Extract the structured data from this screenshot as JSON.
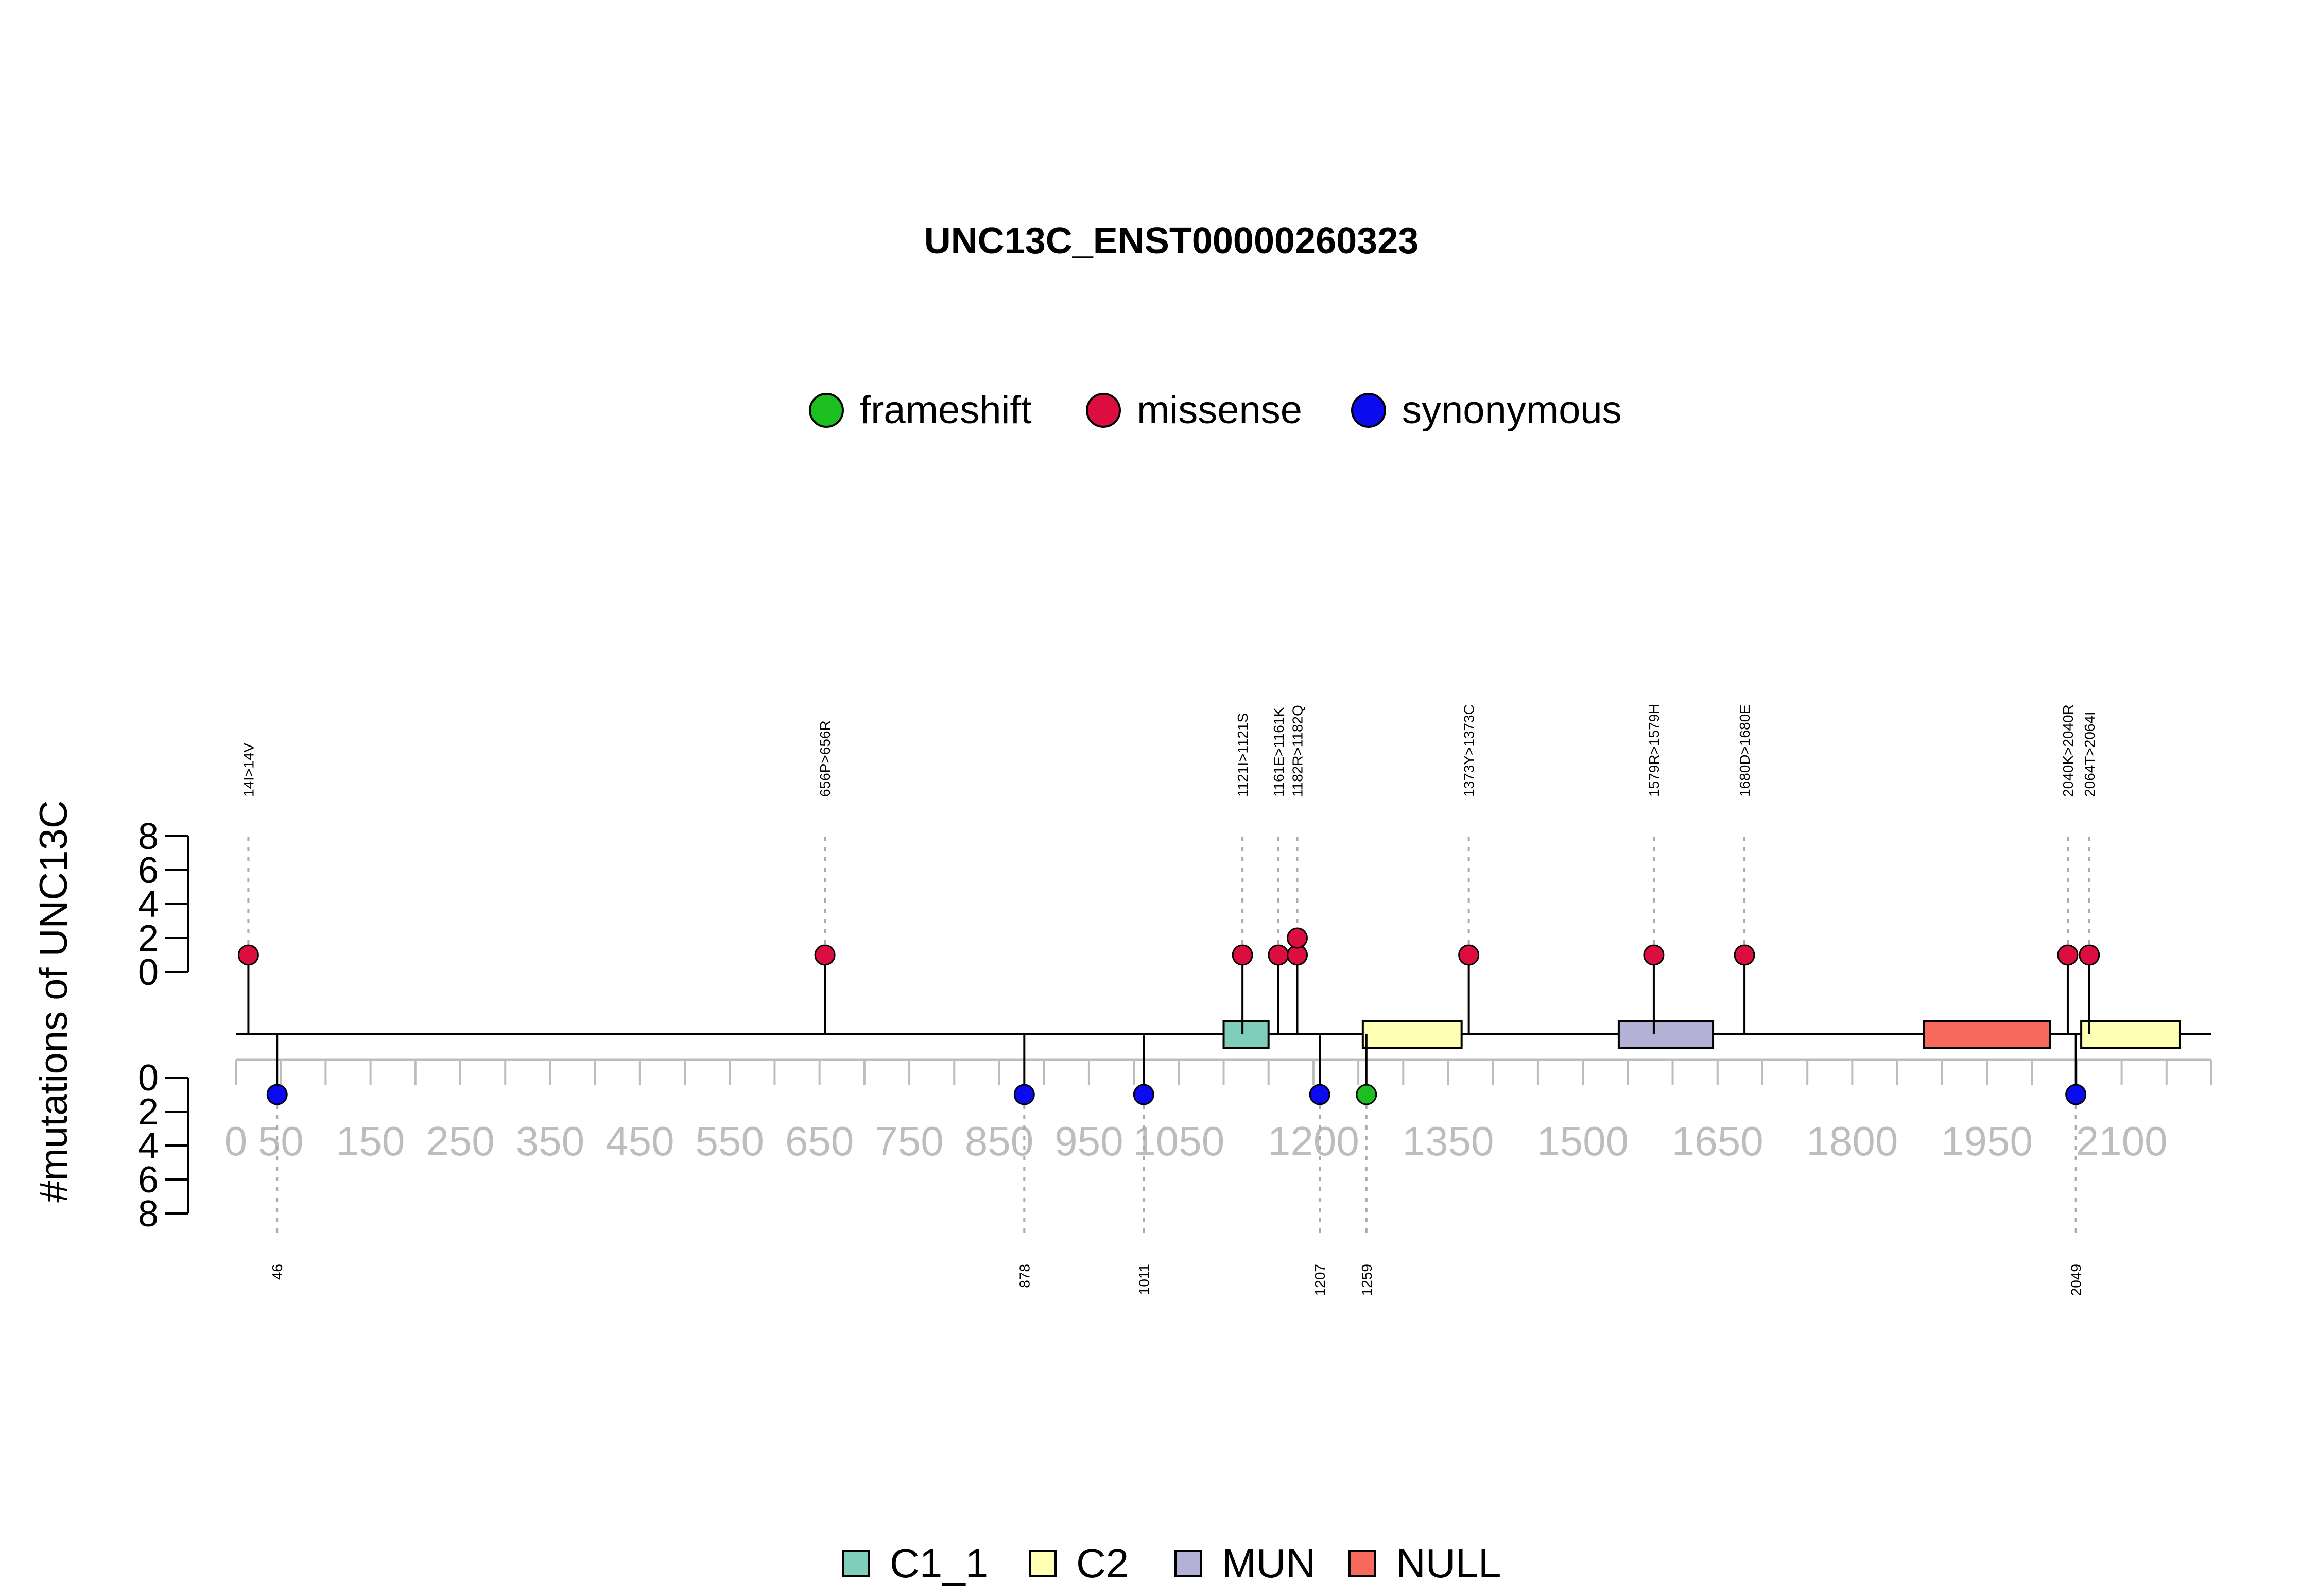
{
  "chart_data": {
    "type": "lollipop",
    "title": "UNC13C_ENST00000260323",
    "ylabel": "#mutations of UNC13C",
    "xlim": [
      0,
      2200
    ],
    "x_ticks": [
      0,
      50,
      150,
      250,
      350,
      450,
      550,
      650,
      750,
      850,
      950,
      1050,
      1200,
      1350,
      1500,
      1650,
      1800,
      1950,
      2100
    ],
    "y_ticks": [
      0,
      2,
      4,
      6,
      8
    ],
    "legend_types": [
      {
        "name": "frameshift",
        "color": "#1cbe20"
      },
      {
        "name": "missense",
        "color": "#dc0e3f"
      },
      {
        "name": "synonymous",
        "color": "#0b0bf0"
      }
    ],
    "legend_domains": [
      {
        "name": "C1_1",
        "color": "#7fcdbb"
      },
      {
        "name": "C2",
        "color": "#ffffb3"
      },
      {
        "name": "MUN",
        "color": "#b3b1d6"
      },
      {
        "name": "NULL",
        "color": "#f7695d"
      }
    ],
    "domains": [
      {
        "name": "C1_1",
        "start": 1100,
        "end": 1150
      },
      {
        "name": "C2",
        "start": 1255,
        "end": 1365
      },
      {
        "name": "MUN",
        "start": 1540,
        "end": 1645
      },
      {
        "name": "NULL",
        "start": 1880,
        "end": 2020
      },
      {
        "name": "C2",
        "start": 2055,
        "end": 2165
      }
    ],
    "top_mutations": [
      {
        "pos": 14,
        "label": "14I>14V",
        "count": 1,
        "type": "missense"
      },
      {
        "pos": 656,
        "label": "656P>656R",
        "count": 1,
        "type": "missense"
      },
      {
        "pos": 1121,
        "label": "1121I>1121S",
        "count": 1,
        "type": "missense"
      },
      {
        "pos": 1161,
        "label": "1161E>1161K",
        "count": 1,
        "type": "missense"
      },
      {
        "pos": 1182,
        "label": "1182R>1182Q",
        "count": 2,
        "type": "missense"
      },
      {
        "pos": 1373,
        "label": "1373Y>1373C",
        "count": 1,
        "type": "missense"
      },
      {
        "pos": 1579,
        "label": "1579R>1579H",
        "count": 1,
        "type": "missense"
      },
      {
        "pos": 1680,
        "label": "1680D>1680E",
        "count": 1,
        "type": "missense"
      },
      {
        "pos": 2040,
        "label": "2040K>2040R",
        "count": 1,
        "type": "missense"
      },
      {
        "pos": 2064,
        "label": "2064T>2064I",
        "count": 1,
        "type": "missense"
      }
    ],
    "bottom_mutations": [
      {
        "pos": 46,
        "label": "46",
        "count": 1,
        "type": "synonymous"
      },
      {
        "pos": 878,
        "label": "878",
        "count": 1,
        "type": "synonymous"
      },
      {
        "pos": 1011,
        "label": "1011",
        "count": 1,
        "type": "synonymous"
      },
      {
        "pos": 1207,
        "label": "1207",
        "count": 1,
        "type": "synonymous"
      },
      {
        "pos": 1259,
        "label": "1259",
        "count": 1,
        "type": "frameshift"
      },
      {
        "pos": 2049,
        "label": "2049",
        "count": 1,
        "type": "synonymous"
      }
    ]
  }
}
